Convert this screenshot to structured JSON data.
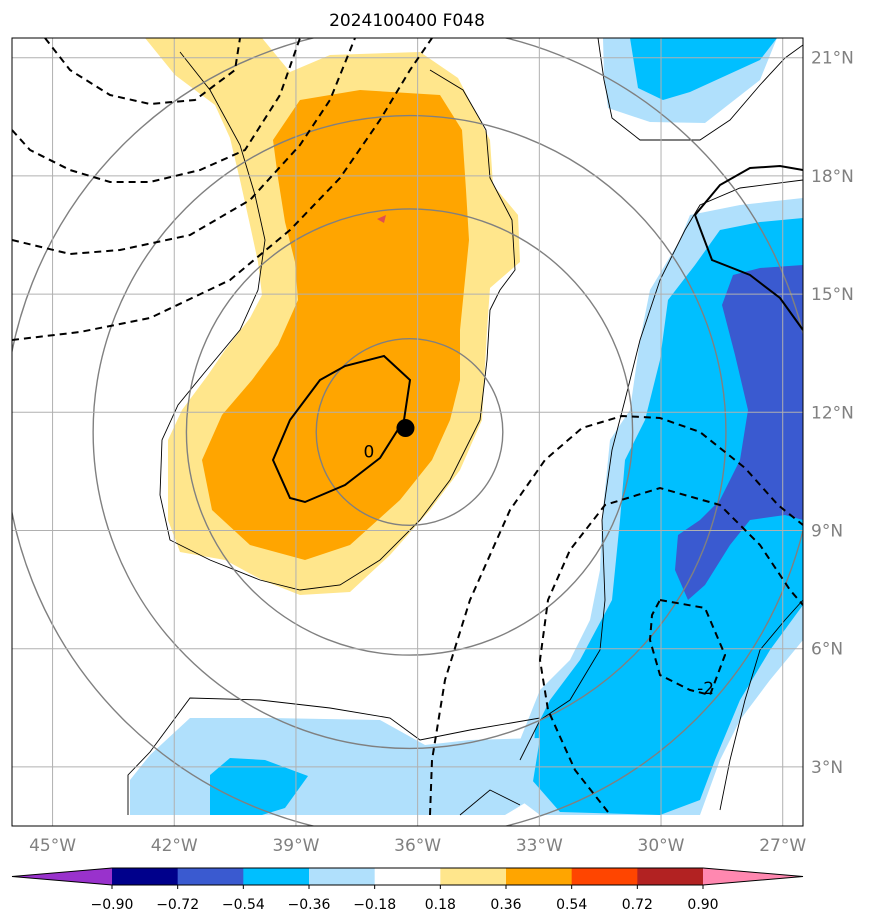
{
  "title": "2024100400 F048",
  "map": {
    "lon_range": [
      -46,
      -26.5
    ],
    "lat_range": [
      1.5,
      21.5
    ],
    "lon_ticks": [
      {
        "value": -45,
        "label": "45°W"
      },
      {
        "value": -42,
        "label": "42°W"
      },
      {
        "value": -39,
        "label": "39°W"
      },
      {
        "value": -36,
        "label": "36°W"
      },
      {
        "value": -33,
        "label": "33°W"
      },
      {
        "value": -30,
        "label": "30°W"
      },
      {
        "value": -27,
        "label": "27°W"
      }
    ],
    "lat_ticks": [
      {
        "value": 3,
        "label": "3°N"
      },
      {
        "value": 6,
        "label": "6°N"
      },
      {
        "value": 9,
        "label": "9°N"
      },
      {
        "value": 12,
        "label": "12°N"
      },
      {
        "value": 15,
        "label": "15°N"
      },
      {
        "value": 18,
        "label": "18°N"
      },
      {
        "value": 21,
        "label": "21°N"
      }
    ],
    "grid": true,
    "storm_center": {
      "lon": -36.3,
      "lat": 11.6
    },
    "range_rings_center": {
      "lon": -36.2,
      "lat": 11.5
    },
    "range_rings_radius_deg": [
      2.3,
      5.5,
      7.8,
      10.0
    ],
    "contour_labels": [
      {
        "text": "0",
        "lon": -37.2,
        "lat": 11.0
      },
      {
        "text": "-2",
        "lon": -28.9,
        "lat": 5.0
      }
    ],
    "colors": {
      "pos_light": "#ffe68c",
      "pos_dark": "#ffa500",
      "neg_light": "#b0e0fc",
      "neg_mid": "#00bfff",
      "neg_dark": "#3a5ad0",
      "ring": "#808080",
      "grid": "#b0b0b0"
    }
  },
  "colorbar": {
    "levels": [
      "−0.90",
      "−0.72",
      "−0.54",
      "−0.36",
      "−0.18",
      "0.18",
      "0.36",
      "0.54",
      "0.72",
      "0.90"
    ],
    "colors": [
      "#9932cc",
      "#00008b",
      "#3a5ad0",
      "#00bfff",
      "#b0e0fc",
      "#ffffff",
      "#ffe68c",
      "#ffa500",
      "#ff4500",
      "#b22222",
      "#ff88b0"
    ],
    "extend": "both"
  }
}
